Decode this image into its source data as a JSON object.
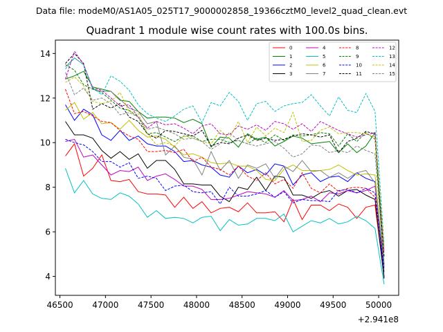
{
  "header": {
    "data_file": "Data file: modeM0/AS1A05_025T17_9000002858_19366cztM0_level2_quad_clean.evt"
  },
  "chart_data": {
    "type": "line",
    "title": "Quadrant 1 module wise count rates with 100.0s bins.",
    "xlabel": "",
    "ylabel": "",
    "x_offset_label": "+2.941e8",
    "xlim": [
      46450,
      50220
    ],
    "ylim": [
      3.15,
      14.6
    ],
    "x_ticks": [
      46500,
      47000,
      47500,
      48000,
      48500,
      49000,
      49500,
      50000
    ],
    "y_ticks": [
      4,
      6,
      8,
      10,
      12,
      14
    ],
    "grid": false,
    "legend_placement": "top-right",
    "x": [
      46560,
      46660,
      46760,
      46860,
      46960,
      47060,
      47160,
      47260,
      47360,
      47460,
      47560,
      47660,
      47760,
      47860,
      47960,
      48060,
      48160,
      48260,
      48360,
      48460,
      48560,
      48660,
      48760,
      48860,
      48960,
      49060,
      49160,
      49260,
      49360,
      49460,
      49560,
      49660,
      49760,
      49860,
      49960,
      50060
    ],
    "series": [
      {
        "name": "0",
        "color": "#ff0000",
        "dash": false,
        "values": [
          9.4,
          9.95,
          8.5,
          8.85,
          9.45,
          8.3,
          8.25,
          8.35,
          7.8,
          7.7,
          7.7,
          7.65,
          7.1,
          7.55,
          7.05,
          7.35,
          6.85,
          7.05,
          7.1,
          6.9,
          7.3,
          6.85,
          6.85,
          6.9,
          6.45,
          7.45,
          6.55,
          7.2,
          7.2,
          6.95,
          7.25,
          7.1,
          6.6,
          7.1,
          7.2,
          4.0
        ]
      },
      {
        "name": "1",
        "color": "#008000",
        "dash": false,
        "values": [
          12.85,
          13.0,
          13.2,
          12.5,
          12.4,
          12.3,
          11.9,
          11.85,
          11.4,
          11.1,
          11.15,
          11.15,
          11.1,
          10.9,
          11.05,
          10.85,
          9.8,
          10.25,
          10.2,
          9.8,
          10.4,
          10.15,
          10.25,
          9.85,
          10.05,
          10.3,
          10.2,
          9.95,
          10.0,
          10.05,
          9.55,
          9.95,
          9.55,
          9.85,
          10.45,
          4.2
        ]
      },
      {
        "name": "2",
        "color": "#0000ff",
        "dash": false,
        "values": [
          11.7,
          11.0,
          11.5,
          11.25,
          10.35,
          10.1,
          10.55,
          10.1,
          10.3,
          9.95,
          9.85,
          9.85,
          9.6,
          9.15,
          9.2,
          9.0,
          8.9,
          8.55,
          8.45,
          8.95,
          8.65,
          8.8,
          8.55,
          9.05,
          8.95,
          8.1,
          8.55,
          8.65,
          8.25,
          8.45,
          8.5,
          8.25,
          8.65,
          8.4,
          8.25,
          3.95
        ]
      },
      {
        "name": "3",
        "color": "#000000",
        "dash": false,
        "values": [
          10.95,
          10.35,
          10.35,
          10.2,
          9.65,
          9.3,
          9.6,
          9.25,
          9.5,
          8.85,
          9.2,
          9.2,
          8.8,
          8.15,
          8.15,
          8.1,
          8.1,
          7.6,
          7.35,
          8.0,
          7.9,
          8.45,
          7.85,
          8.5,
          8.45,
          7.65,
          7.65,
          7.5,
          7.75,
          7.85,
          7.6,
          7.85,
          7.9,
          7.65,
          7.45,
          3.9
        ]
      },
      {
        "name": "4",
        "color": "#c000c0",
        "dash": false,
        "values": [
          10.05,
          10.15,
          9.35,
          9.45,
          9.0,
          8.55,
          8.75,
          8.7,
          8.9,
          8.3,
          8.5,
          8.6,
          8.35,
          8.05,
          8.05,
          7.9,
          7.45,
          7.45,
          7.5,
          7.65,
          7.8,
          7.75,
          7.7,
          7.55,
          7.85,
          7.4,
          7.45,
          7.6,
          7.35,
          7.75,
          7.7,
          7.85,
          7.75,
          7.85,
          8.05,
          4.45
        ]
      },
      {
        "name": "5",
        "color": "#00c0c0",
        "dash": false,
        "values": [
          8.85,
          7.75,
          8.3,
          7.7,
          7.5,
          7.45,
          7.75,
          7.6,
          7.25,
          6.65,
          6.95,
          6.6,
          6.65,
          6.6,
          6.4,
          6.65,
          6.7,
          6.05,
          6.55,
          6.3,
          6.35,
          6.6,
          6.6,
          6.5,
          6.8,
          6.0,
          6.25,
          6.5,
          6.4,
          6.6,
          6.35,
          6.45,
          6.7,
          6.5,
          6.15,
          3.65
        ]
      },
      {
        "name": "6",
        "color": "#c0c000",
        "dash": false,
        "values": [
          11.45,
          11.8,
          11.05,
          11.35,
          10.85,
          10.9,
          10.6,
          11.0,
          10.55,
          10.25,
          10.3,
          10.15,
          9.8,
          9.45,
          9.5,
          9.35,
          9.1,
          9.05,
          9.1,
          8.95,
          8.95,
          8.75,
          8.35,
          8.3,
          8.8,
          9.0,
          8.75,
          8.75,
          8.75,
          8.8,
          9.0,
          8.75,
          8.55,
          8.6,
          8.55,
          4.3
        ]
      },
      {
        "name": "7",
        "color": "#808080",
        "dash": false,
        "values": [
          13.4,
          13.8,
          13.5,
          12.4,
          12.3,
          12.3,
          11.95,
          11.55,
          11.4,
          10.85,
          10.95,
          9.45,
          9.85,
          9.35,
          9.25,
          8.55,
          9.6,
          8.75,
          9.2,
          8.4,
          9.0,
          8.85,
          9.05,
          8.4,
          8.95,
          8.7,
          9.2,
          8.7,
          8.75,
          8.45,
          8.65,
          8.4,
          8.65,
          8.75,
          8.2,
          4.4
        ]
      },
      {
        "name": "8",
        "color": "#ff0000",
        "dash": true,
        "values": [
          12.4,
          11.3,
          11.4,
          11.2,
          10.95,
          10.9,
          10.55,
          10.3,
          10.15,
          9.6,
          9.6,
          9.65,
          9.55,
          9.7,
          9.15,
          9.35,
          8.9,
          8.8,
          8.55,
          8.95,
          8.5,
          8.3,
          8.65,
          8.15,
          8.35,
          7.95,
          8.65,
          7.95,
          7.75,
          8.15,
          7.8,
          7.95,
          8.0,
          7.95,
          7.55,
          4.55
        ]
      },
      {
        "name": "9",
        "color": "#008000",
        "dash": true,
        "values": [
          13.5,
          13.25,
          12.6,
          12.4,
          12.25,
          11.9,
          11.55,
          11.45,
          11.15,
          10.4,
          10.45,
          10.25,
          10.05,
          10.3,
          10.3,
          10.05,
          10.15,
          10.15,
          10.0,
          10.1,
          9.95,
          10.2,
          10.0,
          10.35,
          10.1,
          10.35,
          10.3,
          10.35,
          10.45,
          10.4,
          9.85,
          10.4,
          10.05,
          10.45,
          10.15,
          4.5
        ]
      },
      {
        "name": "10",
        "color": "#0000ff",
        "dash": true,
        "values": [
          10.15,
          10.0,
          9.9,
          9.6,
          9.15,
          9.15,
          8.9,
          9.1,
          8.4,
          8.5,
          8.4,
          7.85,
          8.05,
          8.1,
          7.8,
          7.75,
          7.8,
          7.25,
          8.0,
          7.6,
          7.6,
          7.7,
          7.85,
          7.55,
          7.8,
          7.3,
          7.45,
          7.4,
          7.4,
          7.35,
          7.85,
          7.9,
          7.75,
          7.95,
          7.75,
          4.3
        ]
      },
      {
        "name": "11",
        "color": "#000000",
        "dash": true,
        "values": [
          13.55,
          14.0,
          13.55,
          11.5,
          11.75,
          11.55,
          11.75,
          11.15,
          10.95,
          10.4,
          10.2,
          10.55,
          10.5,
          10.4,
          10.3,
          10.55,
          9.85,
          10.0,
          9.95,
          10.2,
          10.35,
          10.1,
          10.2,
          10.1,
          10.15,
          10.3,
          10.4,
          10.35,
          10.25,
          10.35,
          9.55,
          10.05,
          10.2,
          10.5,
          10.4,
          4.9
        ]
      },
      {
        "name": "12",
        "color": "#c000c0",
        "dash": true,
        "values": [
          12.85,
          14.1,
          13.5,
          12.45,
          12.35,
          12.0,
          11.65,
          11.7,
          11.15,
          10.65,
          10.95,
          10.8,
          10.85,
          10.65,
          10.4,
          10.75,
          10.85,
          10.4,
          10.35,
          10.75,
          10.6,
          10.8,
          10.55,
          10.95,
          10.85,
          10.6,
          10.85,
          10.5,
          10.95,
          10.75,
          10.55,
          10.4,
          10.25,
          10.35,
          10.45,
          5.1
        ]
      },
      {
        "name": "13",
        "color": "#00c0c0",
        "dash": true,
        "values": [
          13.3,
          13.8,
          13.5,
          12.45,
          12.15,
          13.0,
          12.75,
          12.35,
          11.7,
          11.3,
          11.1,
          10.95,
          11.2,
          11.5,
          11.65,
          10.9,
          11.8,
          11.65,
          12.25,
          11.85,
          11.0,
          11.75,
          11.85,
          11.4,
          11.65,
          11.75,
          11.8,
          12.15,
          11.65,
          11.2,
          12.05,
          11.45,
          11.35,
          12.2,
          11.4,
          5.45
        ]
      },
      {
        "name": "14",
        "color": "#c0c000",
        "dash": true,
        "values": [
          12.7,
          12.95,
          12.55,
          11.85,
          11.75,
          11.85,
          12.25,
          11.4,
          11.3,
          10.4,
          9.9,
          10.0,
          9.85,
          10.3,
          10.2,
          10.05,
          9.95,
          10.55,
          10.2,
          10.95,
          10.0,
          10.7,
          10.3,
          10.65,
          10.45,
          11.35,
          10.05,
          10.1,
          10.55,
          10.7,
          10.4,
          10.45,
          10.45,
          10.4,
          10.25,
          5.35
        ]
      },
      {
        "name": "15",
        "color": "#808080",
        "dash": true,
        "values": [
          13.15,
          12.15,
          12.45,
          11.9,
          12.0,
          11.75,
          11.25,
          11.35,
          11.15,
          10.6,
          10.7,
          10.55,
          10.4,
          10.15,
          10.2,
          10.05,
          9.7,
          9.95,
          10.45,
          10.1,
          9.95,
          9.85,
          9.95,
          10.05,
          9.75,
          9.35,
          9.5,
          9.9,
          9.85,
          9.55,
          9.65,
          9.55,
          9.85,
          9.65,
          9.5,
          4.6
        ]
      }
    ]
  }
}
